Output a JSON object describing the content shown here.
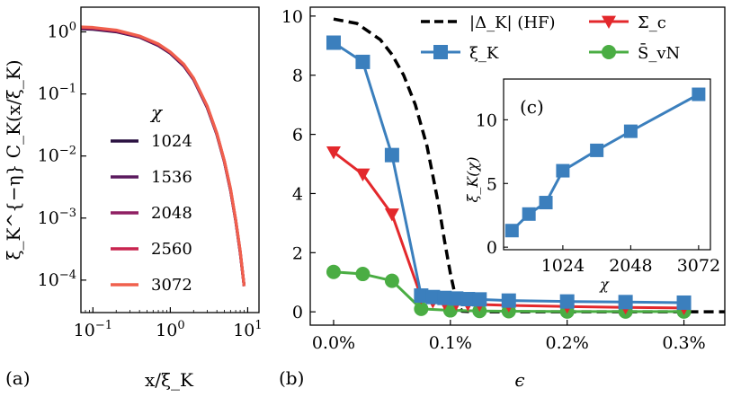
{
  "chart_data": [
    {
      "id": "a",
      "panel_label": "(a)",
      "type": "line",
      "xscale": "log",
      "yscale": "log",
      "xlabel": "x/ξ_K",
      "ylabel": "ξ_K^{−η} C_K(x/ξ_K)",
      "xlim": [
        0.07,
        14
      ],
      "ylim": [
        3e-05,
        2.5
      ],
      "grid": false,
      "x_ticks": [
        {
          "value": 0.1,
          "base": "10",
          "exp": "−1"
        },
        {
          "value": 1,
          "base": "10",
          "exp": "0"
        },
        {
          "value": 10,
          "base": "10",
          "exp": "1"
        }
      ],
      "y_ticks": [
        {
          "value": 1,
          "base": "10",
          "exp": "0"
        },
        {
          "value": 0.1,
          "base": "10",
          "exp": "−1"
        },
        {
          "value": 0.01,
          "base": "10",
          "exp": "−2"
        },
        {
          "value": 0.001,
          "base": "10",
          "exp": "−3"
        },
        {
          "value": 0.0001,
          "base": "10",
          "exp": "−4"
        }
      ],
      "legend_title": "χ",
      "legend_position": "center-left",
      "series": [
        {
          "name": "1024",
          "color": "#2a1140",
          "x": [
            0.07,
            0.1,
            0.2,
            0.4,
            0.7,
            1.0,
            1.5,
            2.0,
            3.0,
            4.0,
            5.0,
            6.0,
            7.0,
            8.0,
            9.0
          ],
          "y": [
            1.12,
            1.1,
            1.0,
            0.82,
            0.6,
            0.45,
            0.28,
            0.17,
            0.06,
            0.022,
            0.008,
            0.0028,
            0.0009,
            0.00028,
            8e-05
          ]
        },
        {
          "name": "1536",
          "color": "#5b1a5e",
          "x": [
            0.07,
            0.1,
            0.2,
            0.4,
            0.7,
            1.0,
            1.5,
            2.0,
            3.0,
            4.0,
            5.0,
            6.0,
            7.0,
            8.0,
            9.0
          ],
          "y": [
            1.14,
            1.12,
            1.02,
            0.83,
            0.61,
            0.46,
            0.285,
            0.172,
            0.061,
            0.0223,
            0.0081,
            0.0028,
            0.00091,
            0.00028,
            8e-05
          ]
        },
        {
          "name": "2048",
          "color": "#8f1f62",
          "x": [
            0.07,
            0.1,
            0.2,
            0.4,
            0.7,
            1.0,
            1.5,
            2.0,
            3.0,
            4.0,
            5.0,
            6.0,
            7.0,
            8.0,
            9.0
          ],
          "y": [
            1.16,
            1.14,
            1.03,
            0.84,
            0.62,
            0.465,
            0.29,
            0.175,
            0.062,
            0.0226,
            0.0082,
            0.0029,
            0.00092,
            0.00029,
            8e-05
          ]
        },
        {
          "name": "2560",
          "color": "#c8244f",
          "x": [
            0.07,
            0.1,
            0.2,
            0.4,
            0.7,
            1.0,
            1.5,
            2.0,
            3.0,
            4.0,
            5.0,
            6.0,
            7.0,
            8.0,
            9.0
          ],
          "y": [
            1.18,
            1.16,
            1.05,
            0.85,
            0.63,
            0.47,
            0.295,
            0.178,
            0.063,
            0.023,
            0.0083,
            0.0029,
            0.00093,
            0.00029,
            8e-05
          ]
        },
        {
          "name": "3072",
          "color": "#f0604d",
          "x": [
            0.07,
            0.1,
            0.2,
            0.4,
            0.7,
            1.0,
            1.5,
            2.0,
            3.0,
            4.0,
            5.0,
            6.0,
            7.0,
            8.0,
            9.0
          ],
          "y": [
            1.2,
            1.18,
            1.07,
            0.86,
            0.64,
            0.475,
            0.3,
            0.18,
            0.064,
            0.0233,
            0.0084,
            0.003,
            0.00094,
            0.0003,
            8e-05
          ]
        }
      ]
    },
    {
      "id": "b",
      "panel_label": "(b)",
      "type": "line",
      "xlabel": "ϵ",
      "ylabel": "",
      "xlim": [
        -0.0002,
        0.00335
      ],
      "ylim": [
        -0.45,
        10.3
      ],
      "grid": false,
      "x_ticks": [
        {
          "value": 0,
          "label": "0.0%"
        },
        {
          "value": 0.001,
          "label": "0.1%"
        },
        {
          "value": 0.002,
          "label": "0.2%"
        },
        {
          "value": 0.003,
          "label": "0.3%"
        }
      ],
      "y_ticks": [
        0,
        2,
        4,
        6,
        8,
        10
      ],
      "legend_position": "top-right",
      "legend_columns": 2,
      "series": [
        {
          "name": "|Δ_K| (HF)",
          "color": "#000000",
          "style": "dashed",
          "marker": "none",
          "x": [
            0,
            0.0002,
            0.0004,
            0.0005,
            0.0006,
            0.0007,
            0.0008,
            0.0009,
            0.00095,
            0.001,
            0.00105,
            0.0011,
            0.0012,
            0.0015,
            0.002,
            0.0025,
            0.003,
            0.00335
          ],
          "y": [
            9.9,
            9.75,
            9.2,
            8.7,
            8.0,
            7.0,
            5.6,
            3.6,
            2.4,
            1.3,
            0.4,
            0.02,
            0.0,
            0.0,
            0.0,
            0.0,
            0.0,
            0.0
          ]
        },
        {
          "name": "Σ_c",
          "color": "#e3282c",
          "style": "solid",
          "marker": "triangle-down",
          "x": [
            0,
            0.00025,
            0.0005,
            0.00075,
            0.00085,
            0.00095,
            0.00105,
            0.00115,
            0.00125,
            0.0015,
            0.002,
            0.0025,
            0.003
          ],
          "y": [
            5.4,
            4.65,
            3.3,
            0.5,
            0.35,
            0.3,
            0.28,
            0.26,
            0.25,
            0.22,
            0.18,
            0.15,
            0.13
          ]
        },
        {
          "name": "ξ_K",
          "color": "#3b7fbd",
          "style": "solid",
          "marker": "square",
          "x": [
            0,
            0.00025,
            0.0005,
            0.00075,
            0.00085,
            0.00095,
            0.00105,
            0.00115,
            0.00125,
            0.0015,
            0.002,
            0.0025,
            0.003
          ],
          "y": [
            9.1,
            8.45,
            5.3,
            0.55,
            0.5,
            0.47,
            0.45,
            0.43,
            0.42,
            0.38,
            0.35,
            0.33,
            0.31
          ]
        },
        {
          "name": "S̄_vN",
          "color": "#4aad43",
          "style": "solid",
          "marker": "circle",
          "x": [
            0,
            0.00025,
            0.0005,
            0.00075,
            0.001,
            0.00125,
            0.0015,
            0.002,
            0.0025,
            0.003
          ],
          "y": [
            1.35,
            1.28,
            1.05,
            0.1,
            0.05,
            0.03,
            0.02,
            0.01,
            0.01,
            0.01
          ]
        }
      ]
    },
    {
      "id": "c",
      "panel_label": "(c)",
      "type": "line",
      "inset_of": "b",
      "xlabel": "χ",
      "ylabel": "ξ_K(χ)",
      "xlim": [
        130,
        3250
      ],
      "ylim": [
        -0.2,
        13.2
      ],
      "x_ticks": [
        1024,
        2048,
        3072
      ],
      "y_ticks": [
        0,
        5,
        10
      ],
      "series": [
        {
          "name": "ξ_K(χ)",
          "color": "#3b7fbd",
          "marker": "square",
          "x": [
            256,
            512,
            768,
            1024,
            1536,
            2048,
            3072
          ],
          "y": [
            1.3,
            2.6,
            3.5,
            6.0,
            7.6,
            9.1,
            12.0
          ]
        }
      ]
    }
  ]
}
